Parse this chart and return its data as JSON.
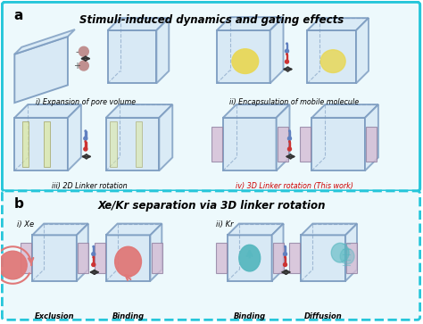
{
  "title_a": "Stimuli-induced dynamics and gating effects",
  "title_b": "Xe/Kr separation via 3D linker rotation",
  "label_a": "a",
  "label_b": "b",
  "sub_i_a": "i) Expansion of pore volume",
  "sub_ii_a": "ii) Encapsulation of mobile molecule",
  "sub_iii_a": "iii) 2D Linker rotation",
  "sub_iv_a": "iv) 3D Linker rotation (This work)",
  "sub_iv_color": "#cc0000",
  "xe_label": "i) Xe",
  "kr_label": "ii) Kr",
  "exclusion": "Exclusion",
  "binding1": "Binding",
  "binding2": "Binding",
  "diffusion": "Diffusion",
  "bg_color": "#ffffff",
  "panel_a_border": "#26c6da",
  "panel_b_border": "#26c6da",
  "panel_a_fill": "#edf9fc",
  "panel_b_fill": "#edf9fc",
  "cube_edge_color": "#7a9abf",
  "cube_face_color": "#d6e8f5",
  "linker_color": "#d4bcd4",
  "yellow_linker": "#dde8a0",
  "xe_color": "#e07878",
  "kr_color": "#58b8c0",
  "mol_color": "#c09090",
  "encap_color": "#e8d858",
  "thermo_cold": "#6080c0",
  "thermo_hot": "#cc3333",
  "arrow_color": "#333333"
}
